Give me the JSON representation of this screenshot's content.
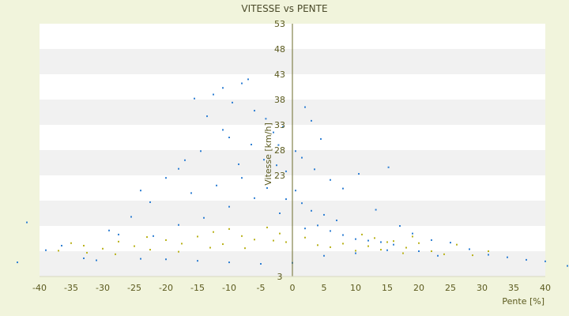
{
  "chart_data": {
    "type": "scatter",
    "title": "VITESSE vs PENTE",
    "xlabel": "Pente [%]",
    "ylabel": "Vitesse [km/h]",
    "xlim": [
      -40,
      40
    ],
    "ylim": [
      3,
      53
    ],
    "x_ticks": [
      -40,
      -35,
      -30,
      -25,
      -20,
      -15,
      -10,
      -5,
      0,
      5,
      10,
      15,
      20,
      25,
      30,
      35,
      40
    ],
    "y_ticks": [
      3,
      8,
      13,
      18,
      23,
      28,
      33,
      38,
      43,
      48,
      53
    ],
    "y_tick_labels": [
      "3",
      "",
      "",
      "",
      "23",
      "28",
      "33",
      "38",
      "43",
      "48",
      "53"
    ],
    "grid": "horizontal-bands",
    "legend": "none",
    "colors": {
      "background": "#f1f4dc",
      "band_light": "#ffffff",
      "band_dark": "#f1f1f1",
      "axis": "#6b6b2a",
      "series_blue": "#2f7fd3",
      "series_yellow": "#b9b21b"
    },
    "series": [
      {
        "color": "#2f7fd3",
        "points": [
          [
            -15.5,
            38.2
          ],
          [
            -12.5,
            39.0
          ],
          [
            -11,
            40.3
          ],
          [
            -8,
            41.2
          ],
          [
            -7,
            42.0
          ],
          [
            -9.5,
            37.4
          ],
          [
            -6,
            35.8
          ],
          [
            -4.2,
            34.2
          ],
          [
            -3,
            31.5
          ],
          [
            -1.5,
            32.6
          ],
          [
            2,
            36.5
          ],
          [
            3,
            33.8
          ],
          [
            4.5,
            30.2
          ],
          [
            -13.5,
            34.7
          ],
          [
            -11,
            32.0
          ],
          [
            -10,
            30.5
          ],
          [
            -6.5,
            29.1
          ],
          [
            -2.2,
            29.0
          ],
          [
            0.5,
            27.8
          ],
          [
            1.5,
            26.5
          ],
          [
            -17,
            26.0
          ],
          [
            -20,
            22.5
          ],
          [
            -22.5,
            17.7
          ],
          [
            -25.5,
            14.8
          ],
          [
            -27.5,
            11.3
          ],
          [
            -33,
            6.6
          ],
          [
            -29,
            12.1
          ],
          [
            -24,
            20.0
          ],
          [
            -18,
            24.3
          ],
          [
            -14.5,
            27.8
          ],
          [
            -8.5,
            25.2
          ],
          [
            -4.5,
            26.1
          ],
          [
            -1,
            23.8
          ],
          [
            3.5,
            24.2
          ],
          [
            6,
            22.1
          ],
          [
            8,
            20.4
          ],
          [
            10.5,
            23.3
          ],
          [
            13.2,
            16.2
          ],
          [
            15.2,
            24.6
          ],
          [
            17,
            13.0
          ],
          [
            19,
            11.5
          ],
          [
            22,
            10.2
          ],
          [
            25,
            9.7
          ],
          [
            28,
            8.4
          ],
          [
            31,
            7.3
          ],
          [
            34,
            6.8
          ],
          [
            37,
            6.3
          ],
          [
            40,
            6.0
          ],
          [
            43.5,
            5.1
          ],
          [
            -43.5,
            5.8
          ],
          [
            -42,
            13.7
          ],
          [
            -39,
            8.2
          ],
          [
            -36.5,
            9.1
          ],
          [
            -31,
            6.2
          ],
          [
            -24,
            6.5
          ],
          [
            -20,
            6.4
          ],
          [
            -15,
            6.1
          ],
          [
            -10,
            5.8
          ],
          [
            -5,
            5.5
          ],
          [
            0,
            5.7
          ],
          [
            5,
            7.1
          ],
          [
            10,
            7.6
          ],
          [
            15,
            8.2
          ],
          [
            20,
            8.0
          ],
          [
            23,
            7.1
          ],
          [
            2,
            12.5
          ],
          [
            4,
            13.1
          ],
          [
            6,
            12.0
          ],
          [
            8,
            11.2
          ],
          [
            10,
            10.4
          ],
          [
            12,
            10.1
          ],
          [
            14,
            9.8
          ],
          [
            16,
            9.3
          ],
          [
            -2,
            15.5
          ],
          [
            -1,
            18.3
          ],
          [
            0.5,
            20.0
          ],
          [
            1.5,
            17.5
          ],
          [
            3,
            16.0
          ],
          [
            5,
            15.2
          ],
          [
            7,
            14.1
          ],
          [
            -6,
            18.5
          ],
          [
            -10,
            16.8
          ],
          [
            -14,
            14.6
          ],
          [
            -18,
            13.2
          ],
          [
            -22,
            11.0
          ],
          [
            -12,
            21.0
          ],
          [
            -16,
            19.5
          ],
          [
            -4,
            20.5
          ],
          [
            -8,
            22.5
          ],
          [
            -2.5,
            25.0
          ]
        ]
      },
      {
        "color": "#b9b21b",
        "points": [
          [
            -37,
            8.1
          ],
          [
            -35,
            9.6
          ],
          [
            -32.5,
            7.7
          ],
          [
            -30,
            8.5
          ],
          [
            -27.5,
            9.9
          ],
          [
            -25,
            9.0
          ],
          [
            -22.5,
            8.3
          ],
          [
            -20,
            10.2
          ],
          [
            -17.5,
            9.5
          ],
          [
            -15,
            10.9
          ],
          [
            -12.5,
            11.8
          ],
          [
            -10,
            12.4
          ],
          [
            -8,
            11.0
          ],
          [
            -6,
            10.3
          ],
          [
            -4,
            12.7
          ],
          [
            -2,
            11.5
          ],
          [
            -1,
            9.8
          ],
          [
            -13,
            8.7
          ],
          [
            -18,
            7.9
          ],
          [
            -23,
            10.8
          ],
          [
            -28,
            7.4
          ],
          [
            -33,
            9.1
          ],
          [
            -11,
            9.4
          ],
          [
            -7.5,
            8.6
          ],
          [
            -3,
            10.1
          ],
          [
            2,
            10.7
          ],
          [
            4,
            9.2
          ],
          [
            6,
            8.8
          ],
          [
            8,
            9.5
          ],
          [
            10,
            8.1
          ],
          [
            12,
            9.0
          ],
          [
            14,
            8.3
          ],
          [
            16,
            10.0
          ],
          [
            18,
            8.7
          ],
          [
            20,
            9.6
          ],
          [
            22,
            8.0
          ],
          [
            24,
            7.4
          ],
          [
            26,
            9.3
          ],
          [
            28.5,
            7.2
          ],
          [
            31,
            8.0
          ],
          [
            15,
            9.8
          ],
          [
            17.5,
            7.6
          ],
          [
            13,
            10.6
          ],
          [
            11,
            11.3
          ],
          [
            19,
            10.9
          ]
        ]
      }
    ]
  }
}
